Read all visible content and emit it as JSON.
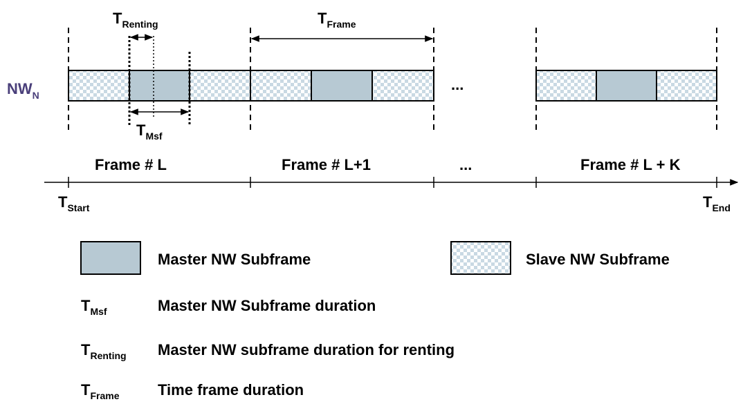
{
  "network": {
    "label": "NW",
    "sub": "N"
  },
  "timing": {
    "t_renting": {
      "main": "T",
      "sub": "Renting"
    },
    "t_frame": {
      "main": "T",
      "sub": "Frame"
    },
    "t_msf": {
      "main": "T",
      "sub": "Msf"
    },
    "t_start": {
      "main": "T",
      "sub": "Start"
    },
    "t_end": {
      "main": "T",
      "sub": "End"
    }
  },
  "ellipsis": "...",
  "frames": [
    {
      "label": "Frame # L"
    },
    {
      "label": "Frame # L+1"
    },
    {
      "label": "Frame # L + K"
    }
  ],
  "legend": {
    "master": "Master NW Subframe",
    "slave": "Slave NW Subframe"
  },
  "definitions": [
    {
      "main": "T",
      "sub": "Msf",
      "text": "Master NW Subframe duration"
    },
    {
      "main": "T",
      "sub": "Renting",
      "text": "Master NW subframe duration for renting"
    },
    {
      "main": "T",
      "sub": "Frame",
      "text": "Time frame duration"
    }
  ],
  "colors": {
    "master_fill": "#b7c9d3",
    "checker_a": "#c9d9e3",
    "checker_b": "#ffffff",
    "network_label": "#4a3f7a"
  }
}
